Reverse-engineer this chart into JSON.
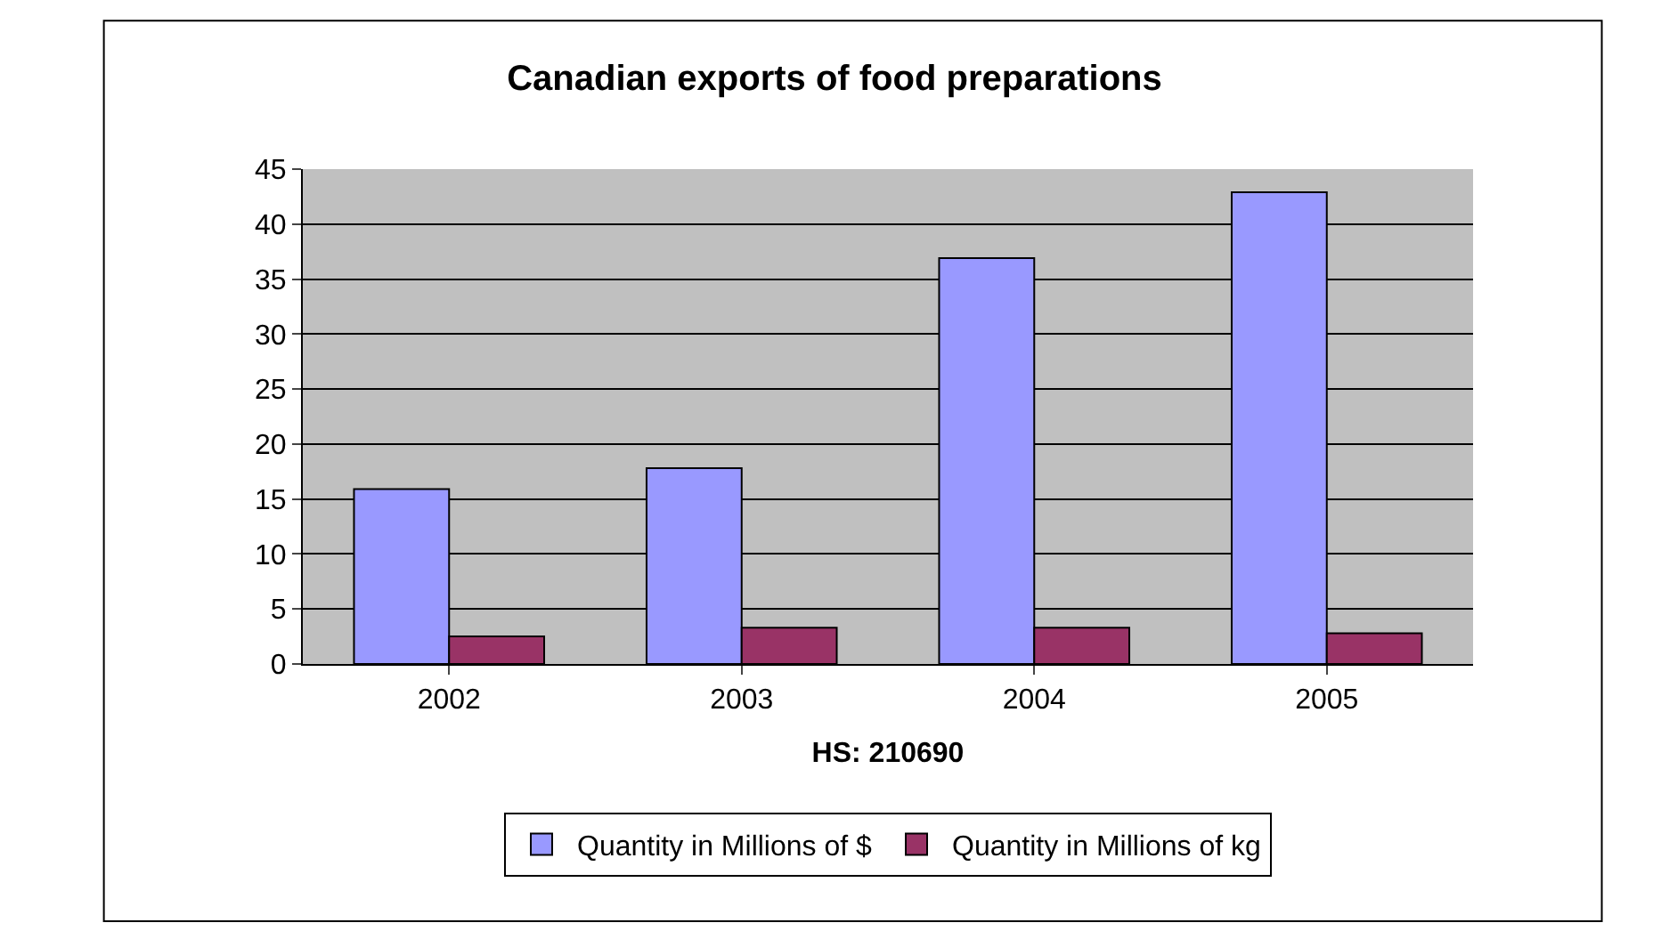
{
  "chart_data": {
    "type": "bar",
    "title": "Canadian exports of food preparations",
    "xlabel": "HS: 210690",
    "categories": [
      "2002",
      "2003",
      "2004",
      "2005"
    ],
    "series": [
      {
        "name": "Quantity in Millions of $",
        "color": "#9999ff",
        "values": [
          15.9,
          17.8,
          36.9,
          42.9
        ]
      },
      {
        "name": "Quantity in Millions of kg",
        "color": "#993366",
        "values": [
          2.5,
          3.3,
          3.3,
          2.8
        ]
      }
    ],
    "ylim": [
      0,
      45
    ],
    "yticks": [
      0,
      5,
      10,
      15,
      20,
      25,
      30,
      35,
      40,
      45
    ],
    "grid": "y",
    "legend": "bottom"
  }
}
